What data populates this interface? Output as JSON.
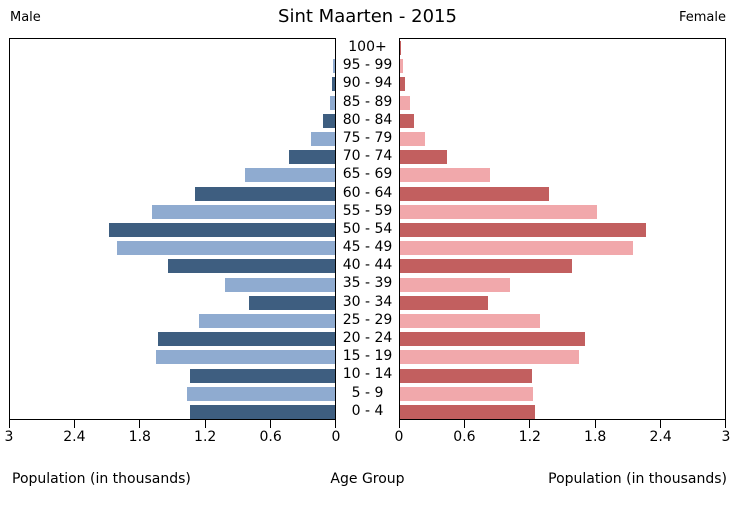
{
  "header": {
    "title": "Sint Maarten - 2015",
    "left_side_label": "Male",
    "right_side_label": "Female"
  },
  "footer": {
    "left_axis_caption": "Population (in thousands)",
    "center_axis_caption": "Age Group",
    "right_axis_caption": "Population (in thousands)"
  },
  "colors": {
    "male_dark": "#3e5e80",
    "male_light": "#8fabd0",
    "female_dark": "#c25f5f",
    "female_light": "#f1a8ab",
    "axis": "#000000"
  },
  "chart_data": {
    "type": "bar",
    "subtype": "population-pyramid",
    "title": "Sint Maarten - 2015",
    "xlabel": "Population (in thousands)",
    "center_label": "Age Group",
    "axis_max": 3,
    "grid": false,
    "categories_top_to_bottom": [
      "100+",
      "95 - 99",
      "90 - 94",
      "85 - 89",
      "80 - 84",
      "75 - 79",
      "70 - 74",
      "65 - 69",
      "60 - 64",
      "55 - 59",
      "50 - 54",
      "45 - 49",
      "40 - 44",
      "35 - 39",
      "30 - 34",
      "25 - 29",
      "20 - 24",
      "15 - 19",
      "10 - 14",
      "5 - 9",
      "0 - 4"
    ],
    "series": [
      {
        "name": "Male",
        "side": "left",
        "values_top_to_bottom": [
          0.0,
          0.02,
          0.03,
          0.05,
          0.11,
          0.22,
          0.42,
          0.83,
          1.28,
          1.68,
          2.07,
          2.0,
          1.53,
          1.01,
          0.79,
          1.25,
          1.62,
          1.64,
          1.33,
          1.36,
          1.33
        ]
      },
      {
        "name": "Female",
        "side": "right",
        "values_top_to_bottom": [
          0.01,
          0.03,
          0.05,
          0.09,
          0.13,
          0.23,
          0.43,
          0.83,
          1.37,
          1.81,
          2.26,
          2.14,
          1.58,
          1.01,
          0.81,
          1.28,
          1.7,
          1.64,
          1.21,
          1.22,
          1.24
        ]
      }
    ],
    "x_axis": {
      "left_tick_labels": [
        "3",
        "2.4",
        "1.8",
        "1.2",
        "0.6",
        "0"
      ],
      "right_tick_labels": [
        "0",
        "0.6",
        "1.2",
        "1.8",
        "2.4",
        "3"
      ],
      "left_tick_values": [
        3,
        2.4,
        1.8,
        1.2,
        0.6,
        0
      ],
      "right_tick_values": [
        0,
        0.6,
        1.2,
        1.8,
        2.4,
        3
      ]
    }
  }
}
